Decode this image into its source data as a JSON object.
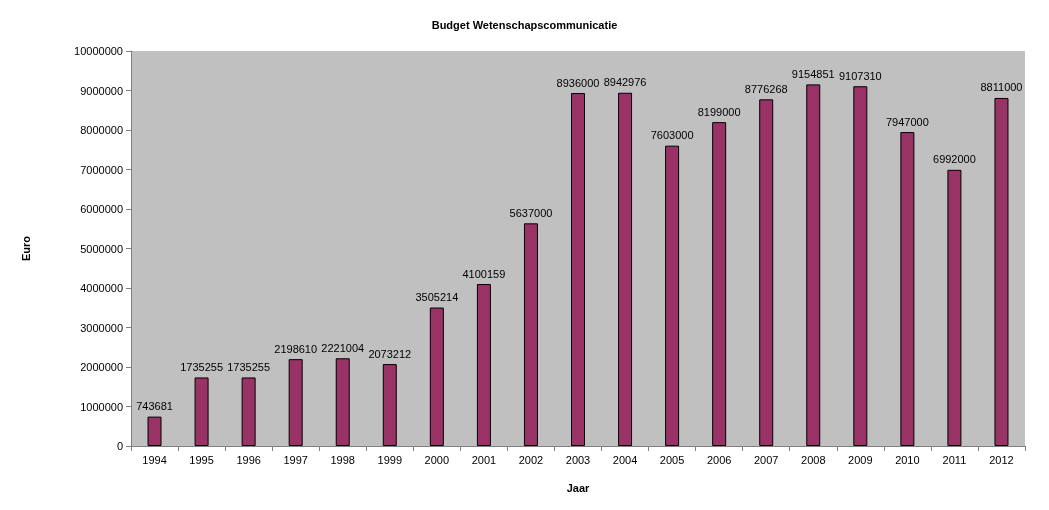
{
  "chart_data": {
    "type": "bar",
    "title": "Budget Wetenschapscommunicatie",
    "xlabel": "Jaar",
    "ylabel": "Euro",
    "categories": [
      "1994",
      "1995",
      "1996",
      "1997",
      "1998",
      "1999",
      "2000",
      "2001",
      "2002",
      "2003",
      "2004",
      "2005",
      "2006",
      "2007",
      "2008",
      "2009",
      "2010",
      "2011",
      "2012"
    ],
    "values": [
      743681,
      1735255,
      1735255,
      2198610,
      2221004,
      2073212,
      3505214,
      4100159,
      5637000,
      8936000,
      8942976,
      7603000,
      8199000,
      8776268,
      9154851,
      9107310,
      7947000,
      6992000,
      8811000
    ],
    "color": "#993366",
    "ylim": [
      0,
      10000000
    ],
    "yticks": [
      0,
      1000000,
      2000000,
      3000000,
      4000000,
      5000000,
      6000000,
      7000000,
      8000000,
      9000000,
      10000000
    ],
    "data_labels": true,
    "grid": false
  }
}
